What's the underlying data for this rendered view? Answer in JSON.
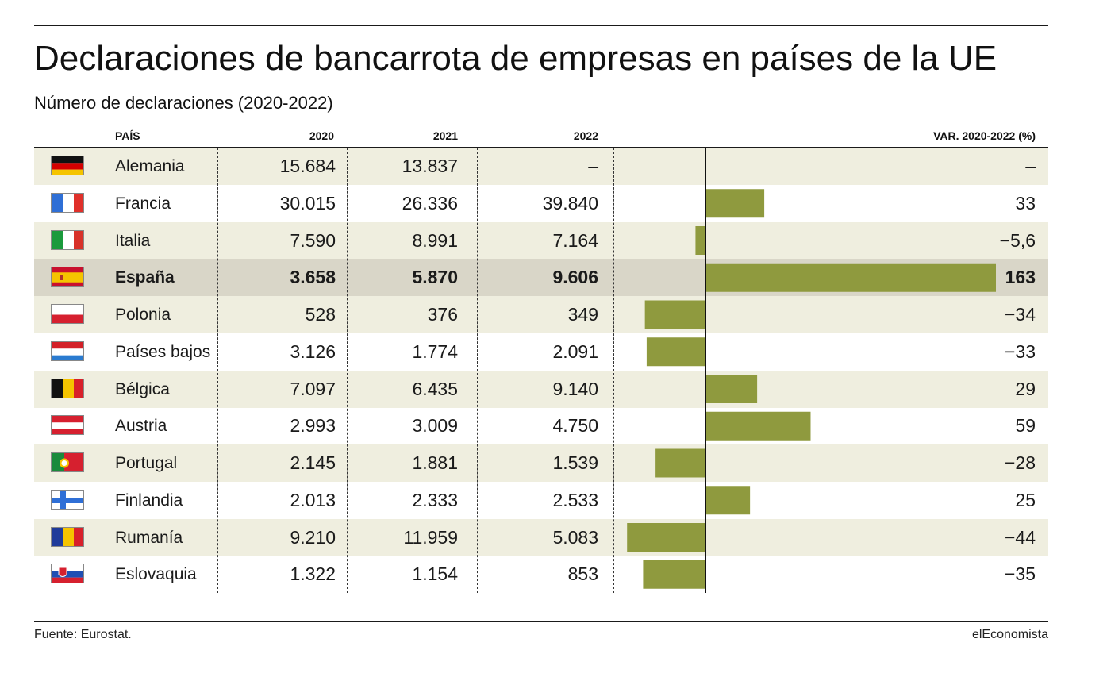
{
  "title": "Declaraciones de bancarrota de empresas en países de  la UE",
  "subtitle": "Número de declaraciones (2020-2022)",
  "headers": {
    "country": "PAÍS",
    "y2020": "2020",
    "y2021": "2021",
    "y2022": "2022",
    "var": "VAR. 2020-2022 (%)"
  },
  "source": "Fuente: Eurostat.",
  "brand": "elEconomista",
  "colors": {
    "bar": "#8f9a3e",
    "shade": "#efeedf",
    "highlight": "#d9d6c8"
  },
  "chart_data": {
    "type": "table",
    "columns": [
      "PAÍS",
      "2020",
      "2021",
      "2022",
      "VAR. 2020-2022 (%)"
    ],
    "rows": [
      {
        "country": "Alemania",
        "flag": "germany-flag",
        "y2020": "15.684",
        "y2021": "13.837",
        "y2022": "–",
        "var_label": "–",
        "var": null
      },
      {
        "country": "Francia",
        "flag": "france-flag",
        "y2020": "30.015",
        "y2021": "26.336",
        "y2022": "39.840",
        "var_label": "33",
        "var": 33
      },
      {
        "country": "Italia",
        "flag": "italy-flag",
        "y2020": "7.590",
        "y2021": "8.991",
        "y2022": "7.164",
        "var_label": "−5,6",
        "var": -5.6
      },
      {
        "country": "España",
        "flag": "spain-flag",
        "y2020": "3.658",
        "y2021": "5.870",
        "y2022": "9.606",
        "var_label": "163",
        "var": 163,
        "highlight": true
      },
      {
        "country": "Polonia",
        "flag": "poland-flag",
        "y2020": "528",
        "y2021": "376",
        "y2022": "349",
        "var_label": "−34",
        "var": -34
      },
      {
        "country": "Países bajos",
        "flag": "netherlands-flag",
        "y2020": "3.126",
        "y2021": "1.774",
        "y2022": "2.091",
        "var_label": "−33",
        "var": -33
      },
      {
        "country": "Bélgica",
        "flag": "belgium-flag",
        "y2020": "7.097",
        "y2021": "6.435",
        "y2022": "9.140",
        "var_label": "29",
        "var": 29
      },
      {
        "country": "Austria",
        "flag": "austria-flag",
        "y2020": "2.993",
        "y2021": "3.009",
        "y2022": "4.750",
        "var_label": "59",
        "var": 59
      },
      {
        "country": "Portugal",
        "flag": "portugal-flag",
        "y2020": "2.145",
        "y2021": "1.881",
        "y2022": "1.539",
        "var_label": "−28",
        "var": -28
      },
      {
        "country": "Finlandia",
        "flag": "finland-flag",
        "y2020": "2.013",
        "y2021": "2.333",
        "y2022": "2.533",
        "var_label": "25",
        "var": 25
      },
      {
        "country": "Rumanía",
        "flag": "romania-flag",
        "y2020": "9.210",
        "y2021": "11.959",
        "y2022": "5.083",
        "var_label": "−44",
        "var": -44
      },
      {
        "country": "Eslovaquia",
        "flag": "slovakia-flag",
        "y2020": "1.322",
        "y2021": "1.154",
        "y2022": "853",
        "var_label": "−35",
        "var": -35
      }
    ]
  }
}
